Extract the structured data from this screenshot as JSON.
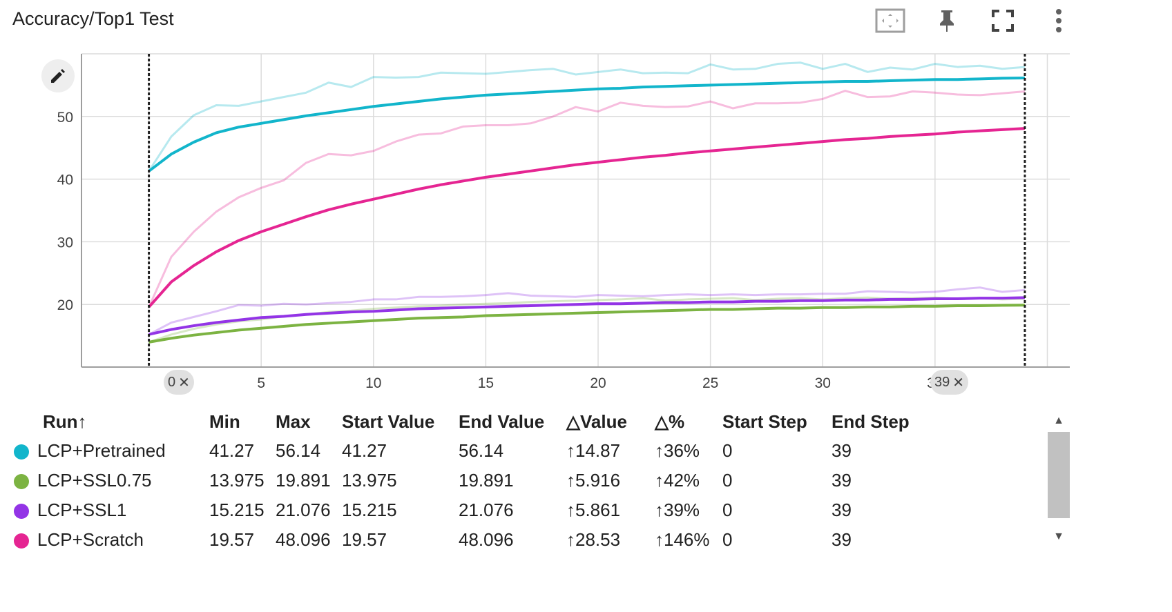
{
  "title": "Accuracy/Top1 Test",
  "toolbar": {
    "fit_icon": "fit-domain-icon",
    "pin_icon": "pin-icon",
    "fullscreen_icon": "fullscreen-icon",
    "more_icon": "more-vert-icon"
  },
  "edit_icon": "pencil-icon",
  "chart_data": {
    "type": "line",
    "xlim": [
      -3,
      41
    ],
    "ylim": [
      10,
      60
    ],
    "xticks": [
      5,
      10,
      15,
      20,
      25,
      30,
      35
    ],
    "yticks": [
      20,
      30,
      40,
      50
    ],
    "grid": true,
    "selection": {
      "start_step": 0,
      "end_step": 39
    },
    "series": [
      {
        "name": "LCP+Pretrained",
        "color": "#12b5cb",
        "smoothed": [
          41.27,
          44.0,
          45.9,
          47.4,
          48.3,
          48.9,
          49.5,
          50.1,
          50.6,
          51.1,
          51.6,
          52.0,
          52.4,
          52.8,
          53.1,
          53.4,
          53.6,
          53.8,
          54.0,
          54.2,
          54.4,
          54.5,
          54.7,
          54.8,
          54.9,
          55.0,
          55.1,
          55.2,
          55.3,
          55.4,
          55.5,
          55.6,
          55.6,
          55.7,
          55.8,
          55.9,
          55.9,
          56.0,
          56.1,
          56.14
        ],
        "raw": [
          41.27,
          46.8,
          50.2,
          51.8,
          51.7,
          52.4,
          53.1,
          53.8,
          55.4,
          54.7,
          56.3,
          56.2,
          56.3,
          57.0,
          56.9,
          56.8,
          57.1,
          57.4,
          57.6,
          56.7,
          57.1,
          57.5,
          56.9,
          57.0,
          56.9,
          58.3,
          57.5,
          57.6,
          58.4,
          58.6,
          57.6,
          58.4,
          57.1,
          57.8,
          57.5,
          58.4,
          57.9,
          58.1,
          57.6,
          57.9
        ]
      },
      {
        "name": "LCP+SSL0.75",
        "color": "#7cb342",
        "smoothed": [
          13.975,
          14.6,
          15.1,
          15.5,
          15.9,
          16.2,
          16.5,
          16.8,
          17.0,
          17.2,
          17.4,
          17.6,
          17.8,
          17.9,
          18.0,
          18.2,
          18.3,
          18.4,
          18.5,
          18.6,
          18.7,
          18.8,
          18.9,
          19.0,
          19.1,
          19.2,
          19.2,
          19.3,
          19.4,
          19.4,
          19.5,
          19.5,
          19.6,
          19.6,
          19.7,
          19.7,
          19.8,
          19.8,
          19.85,
          19.891
        ],
        "raw": [
          13.975,
          15.2,
          16.1,
          16.8,
          17.3,
          17.6,
          18.1,
          18.4,
          18.8,
          19.0,
          19.3,
          19.5,
          19.7,
          19.8,
          20.0,
          20.1,
          20.2,
          20.4,
          20.5,
          20.6,
          20.7,
          20.8,
          21.0,
          20.6,
          20.8,
          20.9,
          21.0,
          20.7,
          20.9,
          21.0,
          20.8,
          21.0,
          21.1,
          20.9,
          21.0,
          21.1,
          20.9,
          21.0,
          20.8,
          20.9
        ]
      },
      {
        "name": "LCP+SSL1",
        "color": "#9334e6",
        "smoothed": [
          15.215,
          16.0,
          16.6,
          17.1,
          17.5,
          17.9,
          18.1,
          18.4,
          18.6,
          18.8,
          18.9,
          19.1,
          19.3,
          19.4,
          19.5,
          19.6,
          19.7,
          19.8,
          19.9,
          20.0,
          20.1,
          20.1,
          20.2,
          20.3,
          20.3,
          20.4,
          20.4,
          20.5,
          20.5,
          20.6,
          20.6,
          20.7,
          20.7,
          20.8,
          20.8,
          20.9,
          20.9,
          21.0,
          21.0,
          21.076
        ],
        "raw": [
          15.215,
          17.1,
          18.0,
          18.9,
          19.9,
          19.8,
          20.1,
          20.0,
          20.2,
          20.4,
          20.8,
          20.8,
          21.2,
          21.2,
          21.3,
          21.5,
          21.8,
          21.4,
          21.3,
          21.2,
          21.5,
          21.4,
          21.3,
          21.5,
          21.6,
          21.5,
          21.6,
          21.5,
          21.6,
          21.6,
          21.7,
          21.7,
          22.1,
          22.0,
          21.9,
          22.0,
          22.4,
          22.7,
          22.0,
          22.3
        ]
      },
      {
        "name": "LCP+Scratch",
        "color": "#e52592",
        "smoothed": [
          19.57,
          23.6,
          26.2,
          28.4,
          30.2,
          31.6,
          32.8,
          34.0,
          35.1,
          36.0,
          36.8,
          37.6,
          38.4,
          39.1,
          39.7,
          40.3,
          40.8,
          41.3,
          41.8,
          42.3,
          42.7,
          43.1,
          43.5,
          43.8,
          44.2,
          44.5,
          44.8,
          45.1,
          45.4,
          45.7,
          46.0,
          46.3,
          46.5,
          46.8,
          47.0,
          47.2,
          47.5,
          47.7,
          47.9,
          48.096
        ],
        "raw": [
          19.57,
          27.6,
          31.6,
          34.8,
          37.1,
          38.6,
          39.8,
          42.6,
          44.0,
          43.8,
          44.5,
          46.0,
          47.1,
          47.3,
          48.4,
          48.6,
          48.6,
          48.9,
          50.0,
          51.5,
          50.8,
          52.2,
          51.7,
          51.5,
          51.6,
          52.4,
          51.3,
          52.1,
          52.1,
          52.2,
          52.8,
          54.1,
          53.1,
          53.2,
          54.0,
          53.8,
          53.5,
          53.4,
          53.7,
          54.0
        ]
      }
    ]
  },
  "step_chips": {
    "start_label": "0",
    "end_label": "39"
  },
  "table": {
    "headers": [
      "Run",
      "Min",
      "Max",
      "Start Value",
      "End Value",
      "Value",
      "%",
      "Start Step",
      "End Step"
    ],
    "sort_icon": "↑",
    "rows": [
      {
        "color": "#12b5cb",
        "run": "LCP+Pretrained",
        "min": "41.27",
        "max": "56.14",
        "start_value": "41.27",
        "end_value": "56.14",
        "delta_value": "↑14.87",
        "delta_pct": "↑36%",
        "start_step": "0",
        "end_step": "39"
      },
      {
        "color": "#7cb342",
        "run": "LCP+SSL0.75",
        "min": "13.975",
        "max": "19.891",
        "start_value": "13.975",
        "end_value": "19.891",
        "delta_value": "↑5.916",
        "delta_pct": "↑42%",
        "start_step": "0",
        "end_step": "39"
      },
      {
        "color": "#9334e6",
        "run": "LCP+SSL1",
        "min": "15.215",
        "max": "21.076",
        "start_value": "15.215",
        "end_value": "21.076",
        "delta_value": "↑5.861",
        "delta_pct": "↑39%",
        "start_step": "0",
        "end_step": "39"
      },
      {
        "color": "#e52592",
        "run": "LCP+Scratch",
        "min": "19.57",
        "max": "48.096",
        "start_value": "19.57",
        "end_value": "48.096",
        "delta_value": "↑28.53",
        "delta_pct": "↑146%",
        "start_step": "0",
        "end_step": "39"
      }
    ]
  }
}
